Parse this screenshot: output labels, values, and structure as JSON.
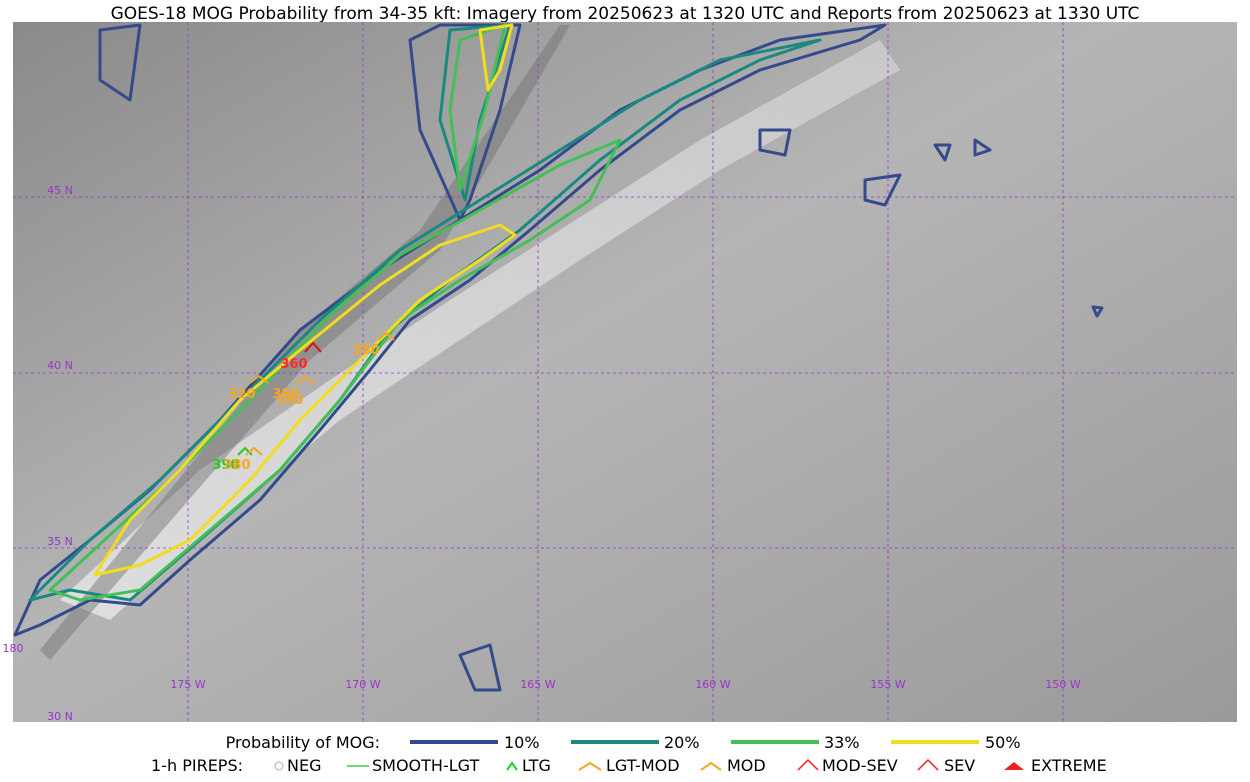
{
  "title": "GOES-18 MOG Probability from 34-35 kft: Imagery from 20250623 at 1320 UTC and Reports from 20250623 at 1330 UTC",
  "map": {
    "lat_labels": [
      "45 N",
      "40 N",
      "35 N",
      "30 N"
    ],
    "lon_labels": [
      "175 W",
      "170 W",
      "165 W",
      "160 W",
      "155 W",
      "150 W"
    ],
    "corner_label": "180",
    "reports": [
      "360",
      "380",
      "320",
      "380",
      "380",
      "390",
      "380"
    ]
  },
  "legend": {
    "probability": {
      "title": "Probability of MOG:",
      "items": [
        "10%",
        "20%",
        "33%",
        "50%"
      ]
    },
    "pireps": {
      "title": "1-h PIREPS:",
      "items": [
        "NEG",
        "SMOOTH-LGT",
        "LTG",
        "LGT-MOD",
        "MOD",
        "MOD-SEV",
        "SEV",
        "EXTREME"
      ]
    }
  }
}
